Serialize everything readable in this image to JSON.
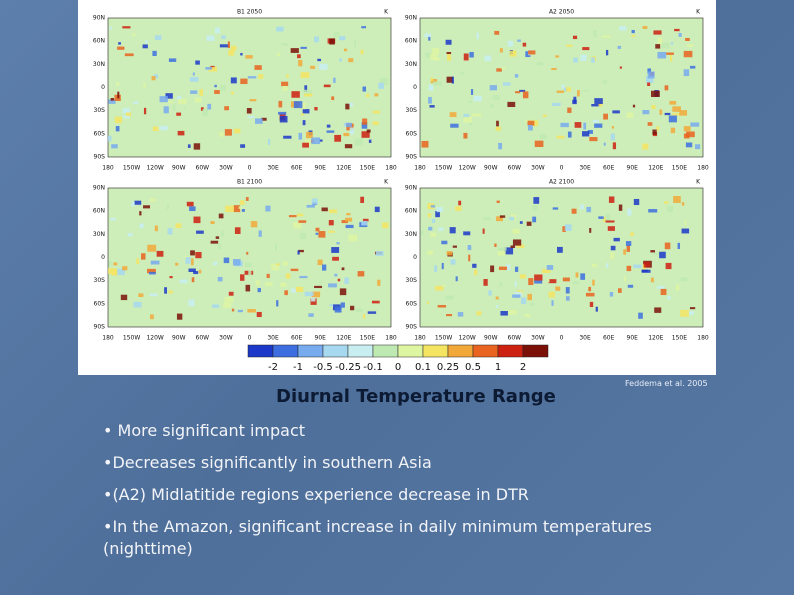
{
  "figure": {
    "panels": [
      {
        "title": "B1 2050",
        "unit": "K"
      },
      {
        "title": "A2 2050",
        "unit": "K"
      },
      {
        "title": "B1 2100",
        "unit": "K"
      },
      {
        "title": "A2 2100",
        "unit": "K"
      }
    ],
    "lat_labels": [
      "90N",
      "60N",
      "30N",
      "0",
      "30S",
      "60S",
      "90S"
    ],
    "lon_labels": [
      "180",
      "150W",
      "120W",
      "90W",
      "60W",
      "30W",
      "0",
      "30E",
      "60E",
      "90E",
      "120E",
      "150E",
      "180"
    ],
    "colorbar": {
      "labels": [
        "-2",
        "-1",
        "-0.5",
        "-0.25",
        "-0.1",
        "0",
        "0.1",
        "0.25",
        "0.5",
        "1",
        "2"
      ],
      "colors": [
        "#1c38c8",
        "#3d6ee0",
        "#78aaee",
        "#a6d8f0",
        "#c8eef2",
        "#bfe9b2",
        "#def5a2",
        "#f4e462",
        "#f2a838",
        "#e86420",
        "#cc2010",
        "#7a1008"
      ]
    }
  },
  "credit": "Feddema et al. 2005",
  "caption": "Diurnal Temperature Range",
  "bullets": [
    "• More significant impact",
    "•Decreases significantly in southern Asia",
    "•(A2) Midlatitide regions experience decrease in DTR",
    "•In the Amazon, significant increase in daily minimum temperatures (nighttime)"
  ]
}
